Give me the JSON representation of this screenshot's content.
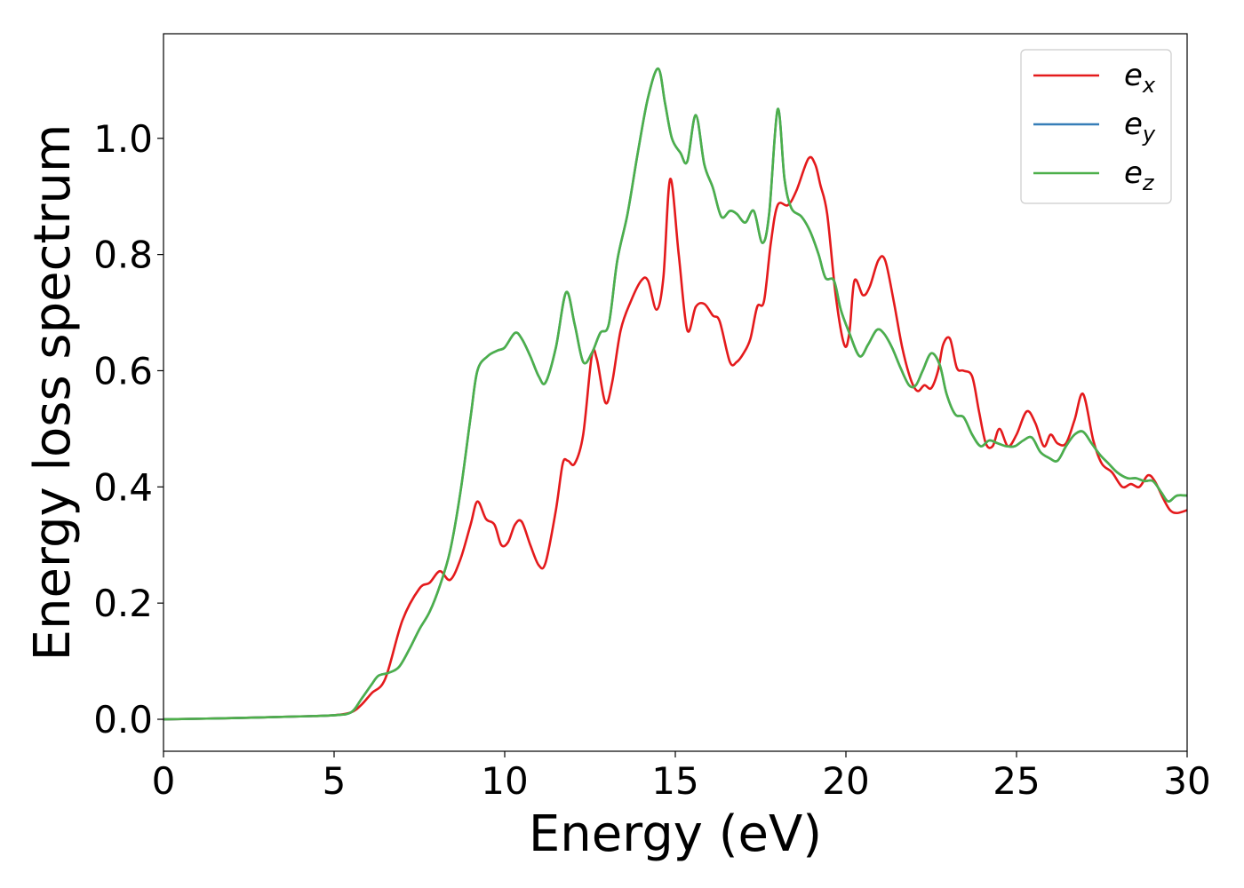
{
  "chart_data": {
    "type": "line",
    "title": "",
    "xlabel": "Energy (eV)",
    "ylabel": "Energy loss spectrum",
    "xlim": [
      0,
      30
    ],
    "ylim": [
      -0.055,
      1.18
    ],
    "xticks": [
      0,
      5,
      10,
      15,
      20,
      25,
      30
    ],
    "xtick_labels": [
      "0",
      "5",
      "10",
      "15",
      "20",
      "25",
      "30"
    ],
    "yticks": [
      0.0,
      0.2,
      0.4,
      0.6,
      0.8,
      1.0
    ],
    "ytick_labels": [
      "0.0",
      "0.2",
      "0.4",
      "0.6",
      "0.8",
      "1.0"
    ],
    "grid": false,
    "legend_position": "top-right",
    "series": [
      {
        "name": "e_x",
        "label_main": "e",
        "label_sub": "x",
        "color": "#e41a1c",
        "x": [
          0,
          2,
          4,
          5,
          5.5,
          5.8,
          6.1,
          6.5,
          7.0,
          7.5,
          7.8,
          8.1,
          8.4,
          8.7,
          9.0,
          9.2,
          9.45,
          9.7,
          9.9,
          10.1,
          10.3,
          10.5,
          10.75,
          11.0,
          11.2,
          11.5,
          11.7,
          11.85,
          12.05,
          12.3,
          12.55,
          12.7,
          12.95,
          13.15,
          13.4,
          13.7,
          14.0,
          14.2,
          14.45,
          14.65,
          14.85,
          15.1,
          15.35,
          15.6,
          15.85,
          16.1,
          16.3,
          16.6,
          16.8,
          17.0,
          17.2,
          17.4,
          17.6,
          17.8,
          18.0,
          18.3,
          18.55,
          18.9,
          19.1,
          19.25,
          19.45,
          19.7,
          19.95,
          20.1,
          20.25,
          20.5,
          20.7,
          20.95,
          21.15,
          21.4,
          21.65,
          21.9,
          22.1,
          22.3,
          22.5,
          22.7,
          22.85,
          23.05,
          23.25,
          23.45,
          23.7,
          23.9,
          24.1,
          24.3,
          24.5,
          24.75,
          25.0,
          25.3,
          25.55,
          25.8,
          26.0,
          26.2,
          26.45,
          26.7,
          26.95,
          27.25,
          27.5,
          27.8,
          28.1,
          28.35,
          28.6,
          28.85,
          29.05,
          29.3,
          29.5,
          29.7,
          30.0
        ],
        "y": [
          0.0,
          0.002,
          0.005,
          0.007,
          0.012,
          0.025,
          0.045,
          0.07,
          0.17,
          0.225,
          0.235,
          0.255,
          0.24,
          0.275,
          0.335,
          0.375,
          0.345,
          0.335,
          0.3,
          0.305,
          0.335,
          0.34,
          0.3,
          0.265,
          0.27,
          0.36,
          0.44,
          0.445,
          0.44,
          0.49,
          0.625,
          0.62,
          0.545,
          0.58,
          0.67,
          0.72,
          0.755,
          0.755,
          0.705,
          0.76,
          0.93,
          0.8,
          0.67,
          0.71,
          0.715,
          0.695,
          0.685,
          0.615,
          0.615,
          0.63,
          0.655,
          0.71,
          0.72,
          0.82,
          0.885,
          0.885,
          0.91,
          0.965,
          0.955,
          0.92,
          0.87,
          0.73,
          0.645,
          0.665,
          0.755,
          0.73,
          0.745,
          0.79,
          0.79,
          0.72,
          0.64,
          0.585,
          0.565,
          0.575,
          0.57,
          0.6,
          0.645,
          0.655,
          0.605,
          0.6,
          0.59,
          0.53,
          0.475,
          0.47,
          0.5,
          0.47,
          0.49,
          0.53,
          0.51,
          0.47,
          0.49,
          0.475,
          0.475,
          0.515,
          0.56,
          0.48,
          0.44,
          0.425,
          0.4,
          0.405,
          0.4,
          0.42,
          0.41,
          0.38,
          0.36,
          0.355,
          0.36
        ]
      },
      {
        "name": "e_y",
        "label_main": "e",
        "label_sub": "y",
        "color": "#377eb8",
        "x": [
          0,
          2,
          4,
          5,
          5.5,
          5.8,
          6.1,
          6.3,
          6.6,
          6.9,
          7.2,
          7.5,
          7.8,
          8.1,
          8.4,
          8.7,
          9.0,
          9.2,
          9.5,
          9.8,
          10.0,
          10.3,
          10.5,
          10.75,
          11.0,
          11.2,
          11.5,
          11.8,
          12.05,
          12.3,
          12.55,
          12.8,
          13.05,
          13.3,
          13.6,
          13.9,
          14.2,
          14.5,
          14.7,
          14.9,
          15.15,
          15.35,
          15.6,
          15.85,
          16.1,
          16.35,
          16.6,
          16.8,
          17.05,
          17.3,
          17.55,
          17.75,
          18.0,
          18.2,
          18.4,
          18.7,
          18.95,
          19.2,
          19.4,
          19.65,
          19.85,
          20.1,
          20.4,
          20.65,
          20.9,
          21.1,
          21.35,
          21.6,
          21.85,
          22.05,
          22.25,
          22.5,
          22.75,
          22.95,
          23.2,
          23.45,
          23.7,
          23.95,
          24.2,
          24.45,
          24.7,
          24.95,
          25.2,
          25.45,
          25.7,
          25.95,
          26.2,
          26.45,
          26.7,
          26.95,
          27.2,
          27.45,
          27.7,
          27.95,
          28.25,
          28.5,
          28.75,
          29.0,
          29.25,
          29.45,
          29.7,
          30.0
        ],
        "y": [
          0.0,
          0.002,
          0.005,
          0.007,
          0.012,
          0.035,
          0.06,
          0.075,
          0.08,
          0.09,
          0.12,
          0.155,
          0.185,
          0.23,
          0.29,
          0.39,
          0.52,
          0.6,
          0.625,
          0.635,
          0.64,
          0.665,
          0.655,
          0.625,
          0.59,
          0.58,
          0.64,
          0.735,
          0.68,
          0.615,
          0.63,
          0.665,
          0.68,
          0.79,
          0.87,
          0.975,
          1.07,
          1.12,
          1.06,
          1.0,
          0.975,
          0.96,
          1.04,
          0.955,
          0.915,
          0.865,
          0.875,
          0.87,
          0.855,
          0.875,
          0.82,
          0.87,
          1.05,
          0.93,
          0.88,
          0.865,
          0.84,
          0.8,
          0.76,
          0.755,
          0.705,
          0.665,
          0.625,
          0.645,
          0.67,
          0.665,
          0.64,
          0.605,
          0.575,
          0.575,
          0.6,
          0.63,
          0.61,
          0.56,
          0.525,
          0.52,
          0.49,
          0.47,
          0.48,
          0.475,
          0.47,
          0.47,
          0.48,
          0.485,
          0.46,
          0.45,
          0.445,
          0.47,
          0.49,
          0.495,
          0.475,
          0.455,
          0.44,
          0.425,
          0.415,
          0.415,
          0.41,
          0.41,
          0.39,
          0.375,
          0.385,
          0.385
        ]
      },
      {
        "name": "e_z",
        "label_main": "e",
        "label_sub": "z",
        "color": "#4daf4a",
        "x": [
          0,
          2,
          4,
          5,
          5.5,
          5.8,
          6.1,
          6.3,
          6.6,
          6.9,
          7.2,
          7.5,
          7.8,
          8.1,
          8.4,
          8.7,
          9.0,
          9.2,
          9.5,
          9.8,
          10.0,
          10.3,
          10.5,
          10.75,
          11.0,
          11.2,
          11.5,
          11.8,
          12.05,
          12.3,
          12.55,
          12.8,
          13.05,
          13.3,
          13.6,
          13.9,
          14.2,
          14.5,
          14.7,
          14.9,
          15.15,
          15.35,
          15.6,
          15.85,
          16.1,
          16.35,
          16.6,
          16.8,
          17.05,
          17.3,
          17.55,
          17.75,
          18.0,
          18.2,
          18.4,
          18.7,
          18.95,
          19.2,
          19.4,
          19.65,
          19.85,
          20.1,
          20.4,
          20.65,
          20.9,
          21.1,
          21.35,
          21.6,
          21.85,
          22.05,
          22.25,
          22.5,
          22.75,
          22.95,
          23.2,
          23.45,
          23.7,
          23.95,
          24.2,
          24.45,
          24.7,
          24.95,
          25.2,
          25.45,
          25.7,
          25.95,
          26.2,
          26.45,
          26.7,
          26.95,
          27.2,
          27.45,
          27.7,
          27.95,
          28.25,
          28.5,
          28.75,
          29.0,
          29.25,
          29.45,
          29.7,
          30.0
        ],
        "y": [
          0.0,
          0.002,
          0.005,
          0.007,
          0.012,
          0.035,
          0.06,
          0.075,
          0.08,
          0.09,
          0.12,
          0.155,
          0.185,
          0.23,
          0.29,
          0.39,
          0.52,
          0.6,
          0.625,
          0.635,
          0.64,
          0.665,
          0.655,
          0.625,
          0.59,
          0.58,
          0.64,
          0.735,
          0.68,
          0.615,
          0.63,
          0.665,
          0.68,
          0.79,
          0.87,
          0.975,
          1.07,
          1.12,
          1.06,
          1.0,
          0.975,
          0.96,
          1.04,
          0.955,
          0.915,
          0.865,
          0.875,
          0.87,
          0.855,
          0.875,
          0.82,
          0.87,
          1.05,
          0.93,
          0.88,
          0.865,
          0.84,
          0.8,
          0.76,
          0.755,
          0.705,
          0.665,
          0.625,
          0.645,
          0.67,
          0.665,
          0.64,
          0.605,
          0.575,
          0.575,
          0.6,
          0.63,
          0.61,
          0.56,
          0.525,
          0.52,
          0.49,
          0.47,
          0.48,
          0.475,
          0.47,
          0.47,
          0.48,
          0.485,
          0.46,
          0.45,
          0.445,
          0.47,
          0.49,
          0.495,
          0.475,
          0.455,
          0.44,
          0.425,
          0.415,
          0.415,
          0.41,
          0.41,
          0.39,
          0.375,
          0.385,
          0.385
        ]
      }
    ]
  }
}
